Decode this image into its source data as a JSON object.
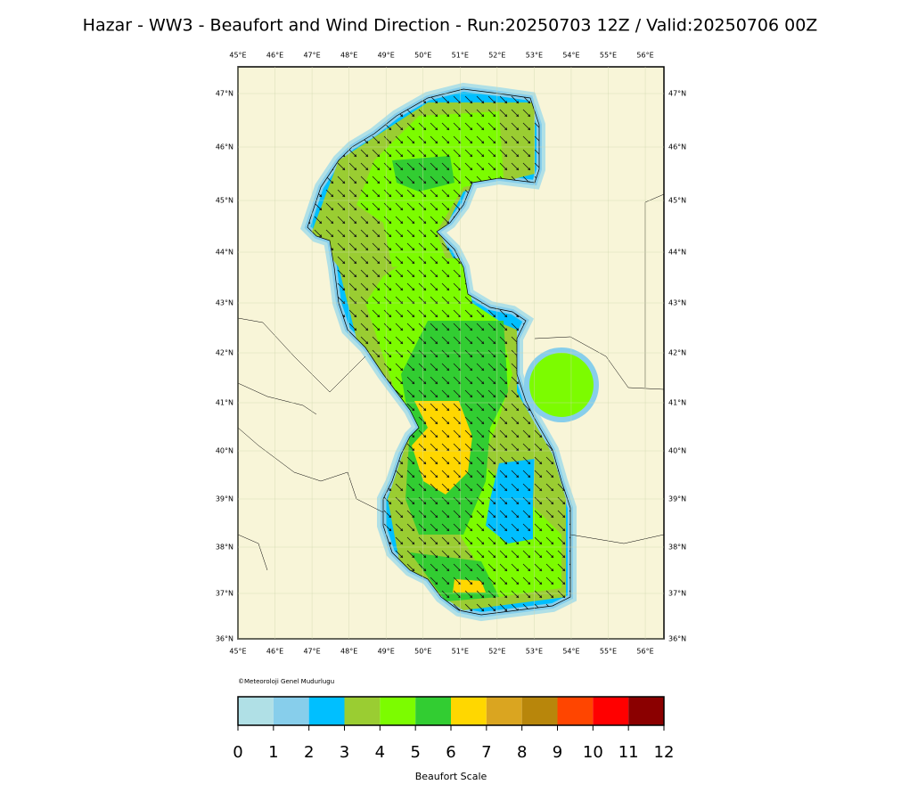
{
  "title": "Hazar - WW3 - Beaufort and Wind Direction - Run:20250703 12Z / Valid:20250706 00Z",
  "map": {
    "lon_labels": [
      "45°E",
      "46°E",
      "47°E",
      "48°E",
      "49°E",
      "50°E",
      "51°E",
      "52°E",
      "53°E",
      "54°E",
      "55°E",
      "56°E"
    ],
    "lat_labels": [
      "36°N",
      "37°N",
      "38°N",
      "39°N",
      "40°N",
      "41°N",
      "42°N",
      "43°N",
      "44°N",
      "45°N",
      "46°N",
      "47°N"
    ]
  },
  "credit": "©Meteoroloji Genel Mudurlugu",
  "colorbar": {
    "label": "Beaufort Scale",
    "ticks": [
      0,
      1,
      2,
      3,
      4,
      5,
      6,
      7,
      8,
      9,
      10,
      11,
      12
    ],
    "colors": [
      "#b0e0e6",
      "#87ceeb",
      "#00bfff",
      "#9acd32",
      "#7cfc00",
      "#32cd32",
      "#ffd700",
      "#daa520",
      "#b8860b",
      "#ff4500",
      "#ff0000",
      "#8b0000"
    ]
  }
}
